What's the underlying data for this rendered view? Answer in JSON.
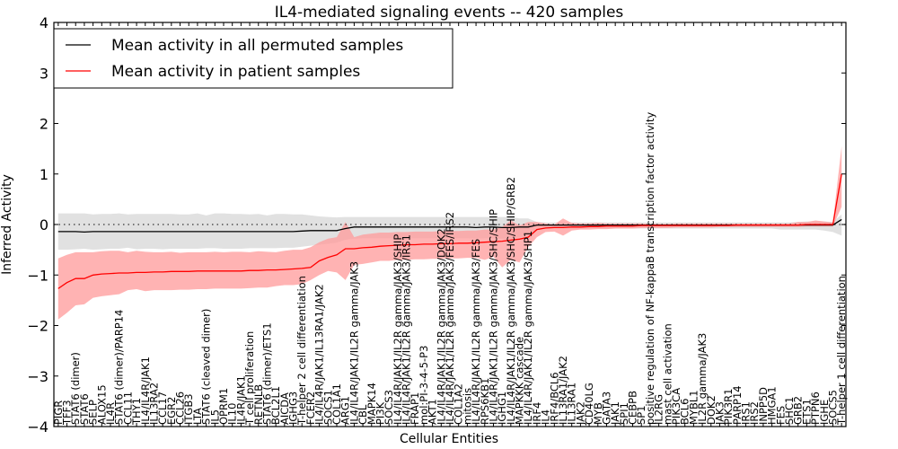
{
  "chart_data": {
    "type": "line",
    "title": "IL4-mediated signaling events -- 420 samples",
    "xlabel": "Cellular Entities",
    "ylabel": "Inferred Activity",
    "ylim": [
      -4,
      4
    ],
    "yticks": [
      "4",
      "3",
      "2",
      "1",
      "0",
      "−1",
      "−2",
      "−3",
      "−4"
    ],
    "ytick_values": [
      4,
      3,
      2,
      1,
      0,
      -1,
      -2,
      -3,
      -4
    ],
    "grid": false,
    "zero_line": "dotted",
    "legend": {
      "placement": "top-left",
      "entries": [
        {
          "label": "Mean activity in all permuted samples",
          "color": "#000000"
        },
        {
          "label": "Mean activity in patient samples",
          "color": "#ff0000"
        }
      ]
    },
    "colors": {
      "patient_line": "#ff0000",
      "patient_band": "#ff9a9a",
      "permuted_line": "#000000",
      "permuted_band": "#d9d9d9"
    },
    "categories": [
      "PIGR",
      "TFF3",
      "STAT6 (dimer)",
      "STAT6",
      "SELP",
      "ALOX15",
      "IL4R",
      "STAT6 (dimer)/PARP14",
      "CCL11",
      "THY1",
      "IL4/IL4R/JAK1",
      "IL13RA2",
      "CCL17",
      "EGR2",
      "CCL26",
      "ITGB3",
      "LTA",
      "STAT6 (cleaved dimer)",
      "IL5",
      "OPRM1",
      "IL10",
      "IL4R/JAK1",
      "T cell proliferation",
      "RETNLB",
      "STAT6 (dimer)/ETS1",
      "BCL2L1",
      "AICDA",
      "IGHG3",
      "T-helper 2 cell differentiation",
      "FCER2",
      "IL4/IL4R/JAK1/IL13RA1/JAK2",
      "SOCS1",
      "COL1A1",
      "ARG1",
      "IL4/IL4R/JAK1/IL2R gamma/JAK3",
      "CBL",
      "MAPK14",
      "PI3K",
      "SOCS3",
      "IL4/IL4R/JAK1/IL2R gamma/JAK3/SHIP",
      "IL4/IL4R/JAK1/IL2R gamma/JAK3/IRS1",
      "FRAP1",
      "mol:PI-3-4-5-P3",
      "AKT1",
      "IL4/IL4R/JAK1/IL2R gamma/JAK3/DOK2",
      "IL4/IL4R/JAK1/IL2R gamma/JAK3/FES/IRS2",
      "COL1A2",
      "mitosis",
      "IL4/IL4R/JAK1/IL2R gamma/JAK3/FES",
      "RPS6KB1",
      "IL4/IL4R/JAK1/IL2R gamma/JAK3/SHC/SHIP",
      "IGHG1",
      "IL4/IL4R/JAK1/IL2R gamma/JAK3/SHC/SHIP/GRB2",
      "MAPKKK cascade",
      "IL4/IL4R/JAK1/IL2R gamma/JAK3/SHP1",
      "IRF4",
      "IL4",
      "IRF4/BCL6",
      "IL13RA1/JAK2",
      "IL13RA1",
      "JAK2",
      "CD40LG",
      "MYB",
      "GATA3",
      "JAK1",
      "SPI1",
      "CEBPB",
      "SP1",
      "positive regulation of NF-kappaB transcription factor activity",
      "IL2RG",
      "mast cell activation",
      "PIK3CA",
      "BCL6",
      "MYBL1",
      "IL2R gamma/JAK3",
      "DOK2",
      "JAK3",
      "PIK3R1",
      "PARP14",
      "IRS1",
      "IRS2",
      "INPP5D",
      "HMGA1",
      "FES",
      "SHC1",
      "GRB2",
      "ETS1",
      "PTPN6",
      "IGHE",
      "SOCS5",
      "T-helper 1 cell differentiation"
    ],
    "series": [
      {
        "name": "Mean activity in patient samples",
        "values": [
          -1.27,
          -1.15,
          -1.07,
          -1.07,
          -1.0,
          -0.98,
          -0.97,
          -0.96,
          -0.96,
          -0.95,
          -0.95,
          -0.94,
          -0.94,
          -0.93,
          -0.93,
          -0.93,
          -0.92,
          -0.92,
          -0.92,
          -0.92,
          -0.92,
          -0.92,
          -0.91,
          -0.91,
          -0.9,
          -0.9,
          -0.89,
          -0.88,
          -0.87,
          -0.85,
          -0.72,
          -0.65,
          -0.6,
          -0.48,
          -0.48,
          -0.46,
          -0.45,
          -0.43,
          -0.42,
          -0.41,
          -0.4,
          -0.4,
          -0.39,
          -0.39,
          -0.38,
          -0.38,
          -0.37,
          -0.37,
          -0.36,
          -0.35,
          -0.34,
          -0.33,
          -0.31,
          -0.29,
          -0.25,
          -0.1,
          -0.07,
          -0.06,
          -0.06,
          -0.05,
          -0.05,
          -0.04,
          -0.04,
          -0.03,
          -0.03,
          -0.03,
          -0.03,
          -0.02,
          -0.02,
          -0.02,
          -0.02,
          -0.02,
          -0.02,
          -0.02,
          -0.02,
          -0.02,
          -0.02,
          -0.02,
          -0.01,
          -0.01,
          -0.01,
          -0.01,
          -0.01,
          -0.01,
          -0.01,
          -0.01,
          0.0,
          0.0,
          0.0,
          0.0,
          1.0
        ],
        "lower": [
          -1.88,
          -1.75,
          -1.6,
          -1.58,
          -1.45,
          -1.42,
          -1.4,
          -1.38,
          -1.3,
          -1.28,
          -1.32,
          -1.3,
          -1.3,
          -1.3,
          -1.29,
          -1.29,
          -1.28,
          -1.28,
          -1.27,
          -1.27,
          -1.27,
          -1.27,
          -1.26,
          -1.25,
          -1.25,
          -1.22,
          -1.2,
          -1.2,
          -1.18,
          -1.1,
          -1.0,
          -0.92,
          -0.95,
          -1.1,
          -0.8,
          -0.78,
          -0.75,
          -0.72,
          -0.72,
          -0.7,
          -0.7,
          -0.69,
          -0.69,
          -0.68,
          -0.68,
          -0.67,
          -0.67,
          -0.66,
          -0.66,
          -0.7,
          -0.64,
          -0.85,
          -0.7,
          -0.75,
          -0.45,
          -0.25,
          -0.15,
          -0.14,
          -0.22,
          -0.12,
          -0.1,
          -0.1,
          -0.09,
          -0.09,
          -0.08,
          -0.08,
          -0.08,
          -0.07,
          -0.07,
          -0.07,
          -0.07,
          -0.06,
          -0.06,
          -0.06,
          -0.06,
          -0.06,
          -0.05,
          -0.05,
          -0.05,
          -0.05,
          -0.05,
          -0.05,
          -0.05,
          -0.05,
          -0.05,
          -0.05,
          -0.04,
          -0.04,
          -0.04,
          -0.04,
          0.35
        ],
        "upper": [
          -0.67,
          -0.6,
          -0.55,
          -0.55,
          -0.55,
          -0.53,
          -0.52,
          -0.52,
          -0.55,
          -0.52,
          -0.54,
          -0.55,
          -0.55,
          -0.54,
          -0.56,
          -0.55,
          -0.55,
          -0.55,
          -0.54,
          -0.55,
          -0.54,
          -0.54,
          -0.55,
          -0.53,
          -0.54,
          -0.55,
          -0.52,
          -0.5,
          -0.5,
          -0.45,
          -0.35,
          -0.28,
          -0.25,
          0.05,
          -0.25,
          -0.2,
          -0.18,
          -0.16,
          -0.16,
          -0.15,
          -0.15,
          -0.14,
          -0.14,
          -0.14,
          -0.13,
          -0.13,
          -0.13,
          -0.12,
          -0.12,
          -0.1,
          -0.1,
          -0.05,
          0.08,
          -0.02,
          0.05,
          0.05,
          0.02,
          0.0,
          0.12,
          0.03,
          0.02,
          0.02,
          0.03,
          0.02,
          0.02,
          0.02,
          0.02,
          0.02,
          0.01,
          0.01,
          0.01,
          0.02,
          0.02,
          0.02,
          0.02,
          0.02,
          0.02,
          0.02,
          0.02,
          0.02,
          0.02,
          0.02,
          0.02,
          0.02,
          0.02,
          0.05,
          0.05,
          0.08,
          0.06,
          0.04,
          1.55
        ]
      },
      {
        "name": "Mean activity in all permuted samples",
        "values": [
          -0.14,
          -0.14,
          -0.14,
          -0.15,
          -0.14,
          -0.14,
          -0.14,
          -0.14,
          -0.14,
          -0.14,
          -0.14,
          -0.14,
          -0.14,
          -0.14,
          -0.14,
          -0.14,
          -0.14,
          -0.14,
          -0.14,
          -0.14,
          -0.14,
          -0.14,
          -0.14,
          -0.14,
          -0.14,
          -0.14,
          -0.14,
          -0.14,
          -0.13,
          -0.12,
          -0.12,
          -0.12,
          -0.12,
          -0.08,
          -0.05,
          -0.05,
          -0.05,
          -0.05,
          -0.05,
          -0.05,
          -0.05,
          -0.05,
          -0.05,
          -0.05,
          -0.05,
          -0.05,
          -0.05,
          -0.05,
          -0.06,
          -0.05,
          -0.05,
          -0.06,
          -0.06,
          -0.05,
          -0.05,
          -0.01,
          -0.01,
          -0.01,
          -0.01,
          -0.01,
          -0.01,
          -0.01,
          -0.01,
          -0.01,
          -0.01,
          -0.01,
          -0.01,
          -0.01,
          -0.01,
          -0.01,
          -0.01,
          -0.01,
          -0.01,
          -0.01,
          -0.01,
          -0.01,
          -0.01,
          -0.01,
          -0.01,
          -0.01,
          -0.01,
          -0.01,
          -0.01,
          -0.01,
          -0.01,
          -0.01,
          -0.01,
          -0.01,
          -0.01,
          -0.01,
          0.1
        ],
        "lower": [
          -0.5,
          -0.5,
          -0.49,
          -0.48,
          -0.5,
          -0.49,
          -0.48,
          -0.48,
          -0.46,
          -0.49,
          -0.48,
          -0.48,
          -0.49,
          -0.48,
          -0.48,
          -0.48,
          -0.48,
          -0.47,
          -0.47,
          -0.48,
          -0.48,
          -0.48,
          -0.47,
          -0.47,
          -0.47,
          -0.47,
          -0.46,
          -0.46,
          -0.44,
          -0.42,
          -0.4,
          -0.38,
          -0.36,
          -0.3,
          -0.28,
          -0.27,
          -0.27,
          -0.27,
          -0.27,
          -0.27,
          -0.27,
          -0.27,
          -0.27,
          -0.27,
          -0.27,
          -0.27,
          -0.27,
          -0.27,
          -0.28,
          -0.27,
          -0.27,
          -0.28,
          -0.28,
          -0.25,
          -0.23,
          -0.1,
          -0.08,
          -0.08,
          -0.08,
          -0.08,
          -0.08,
          -0.08,
          -0.08,
          -0.08,
          -0.08,
          -0.08,
          -0.08,
          -0.08,
          -0.08,
          -0.08,
          -0.08,
          -0.08,
          -0.08,
          -0.08,
          -0.08,
          -0.08,
          -0.08,
          -0.08,
          -0.08,
          -0.08,
          -0.08,
          -0.08,
          -0.08,
          -0.1,
          -0.1,
          -0.1,
          -0.1,
          -0.1,
          -0.12,
          -0.15,
          -0.22
        ],
        "upper": [
          0.22,
          0.22,
          0.22,
          0.22,
          0.2,
          0.21,
          0.21,
          0.22,
          0.2,
          0.21,
          0.21,
          0.21,
          0.21,
          0.21,
          0.2,
          0.2,
          0.22,
          0.18,
          0.22,
          0.22,
          0.21,
          0.21,
          0.2,
          0.21,
          0.18,
          0.21,
          0.21,
          0.2,
          0.2,
          0.18,
          0.16,
          0.15,
          0.14,
          0.15,
          0.15,
          0.15,
          0.15,
          0.15,
          0.15,
          0.15,
          0.15,
          0.15,
          0.15,
          0.15,
          0.15,
          0.15,
          0.15,
          0.15,
          0.15,
          0.15,
          0.15,
          0.15,
          0.15,
          0.12,
          0.12,
          0.05,
          0.04,
          0.04,
          0.04,
          0.04,
          0.04,
          0.04,
          0.04,
          0.04,
          0.04,
          0.04,
          0.04,
          0.04,
          0.04,
          0.04,
          0.04,
          0.04,
          0.04,
          0.04,
          0.04,
          0.04,
          0.04,
          0.04,
          0.04,
          0.04,
          0.04,
          0.04,
          0.04,
          0.04,
          0.04,
          0.05,
          0.06,
          0.06,
          0.06,
          0.05,
          0.2
        ]
      }
    ]
  }
}
